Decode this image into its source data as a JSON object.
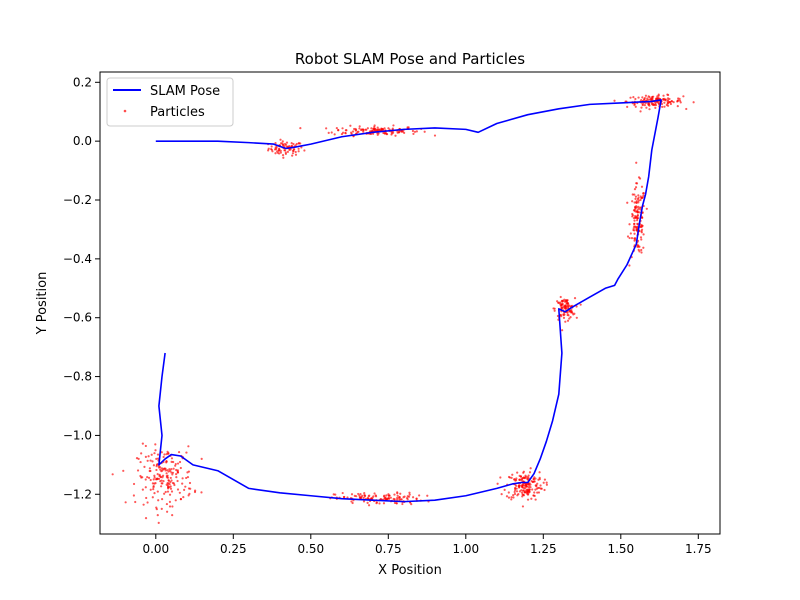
{
  "chart_data": {
    "type": "line",
    "title": "Robot SLAM Pose and Particles",
    "xlabel": "X Position",
    "ylabel": "Y Position",
    "xlim": [
      -0.18,
      1.82
    ],
    "ylim": [
      -1.335,
      0.235
    ],
    "x_ticks": [
      0.0,
      0.25,
      0.5,
      0.75,
      1.0,
      1.25,
      1.5,
      1.75
    ],
    "x_tick_labels": [
      "0.00",
      "0.25",
      "0.50",
      "0.75",
      "1.00",
      "1.25",
      "1.50",
      "1.75"
    ],
    "y_ticks": [
      0.2,
      0.0,
      -0.2,
      -0.4,
      -0.6,
      -0.8,
      -1.0,
      -1.2
    ],
    "y_tick_labels": [
      "0.2",
      "0.0",
      "−0.2",
      "−0.4",
      "−0.6",
      "−0.8",
      "−1.0",
      "−1.2"
    ],
    "grid": false,
    "legend_position": "top-left",
    "series": [
      {
        "name": "SLAM Pose",
        "kind": "line",
        "color": "#0000ff",
        "x": [
          0.0,
          0.1,
          0.2,
          0.3,
          0.38,
          0.42,
          0.45,
          0.5,
          0.6,
          0.7,
          0.8,
          0.9,
          1.0,
          1.04,
          1.1,
          1.2,
          1.3,
          1.4,
          1.5,
          1.6,
          1.63,
          1.62,
          1.6,
          1.59,
          1.58,
          1.57,
          1.56,
          1.55,
          1.52,
          1.49,
          1.48,
          1.45,
          1.4,
          1.35,
          1.32,
          1.3,
          1.31,
          1.3,
          1.28,
          1.26,
          1.24,
          1.22,
          1.2,
          1.18,
          1.15,
          1.1,
          1.0,
          0.9,
          0.8,
          0.7,
          0.6,
          0.5,
          0.4,
          0.3,
          0.25,
          0.2,
          0.12,
          0.08,
          0.05,
          0.03,
          0.01,
          0.02,
          0.01,
          0.02,
          0.03
        ],
        "y": [
          0.0,
          0.0,
          0.0,
          -0.005,
          -0.01,
          -0.025,
          -0.02,
          -0.01,
          0.015,
          0.03,
          0.04,
          0.045,
          0.04,
          0.03,
          0.06,
          0.09,
          0.11,
          0.125,
          0.13,
          0.135,
          0.14,
          0.08,
          -0.03,
          -0.12,
          -0.18,
          -0.22,
          -0.28,
          -0.35,
          -0.42,
          -0.47,
          -0.49,
          -0.5,
          -0.53,
          -0.56,
          -0.58,
          -0.57,
          -0.72,
          -0.86,
          -0.95,
          -1.02,
          -1.08,
          -1.13,
          -1.16,
          -1.16,
          -1.165,
          -1.18,
          -1.205,
          -1.22,
          -1.225,
          -1.22,
          -1.215,
          -1.205,
          -1.195,
          -1.18,
          -1.15,
          -1.12,
          -1.1,
          -1.07,
          -1.065,
          -1.08,
          -1.1,
          -1.0,
          -0.9,
          -0.8,
          -0.72
        ]
      },
      {
        "name": "Particles",
        "kind": "scatter",
        "color": "#ff0000",
        "clusters": [
          {
            "cx": 0.42,
            "cy": -0.025,
            "sx": 0.028,
            "sy": 0.012,
            "n": 80
          },
          {
            "cx": 0.71,
            "cy": 0.035,
            "sx": 0.07,
            "sy": 0.008,
            "n": 140
          },
          {
            "cx": 1.61,
            "cy": 0.135,
            "sx": 0.045,
            "sy": 0.01,
            "n": 140
          },
          {
            "cx": 1.555,
            "cy": -0.27,
            "sx": 0.012,
            "sy": 0.06,
            "n": 140
          },
          {
            "cx": 1.32,
            "cy": -0.57,
            "sx": 0.016,
            "sy": 0.018,
            "n": 100
          },
          {
            "cx": 1.19,
            "cy": -1.17,
            "sx": 0.03,
            "sy": 0.025,
            "n": 170
          },
          {
            "cx": 0.72,
            "cy": -1.215,
            "sx": 0.07,
            "sy": 0.01,
            "n": 130
          },
          {
            "cx": 0.03,
            "cy": -1.14,
            "sx": 0.045,
            "sy": 0.05,
            "n": 200
          }
        ]
      }
    ]
  }
}
